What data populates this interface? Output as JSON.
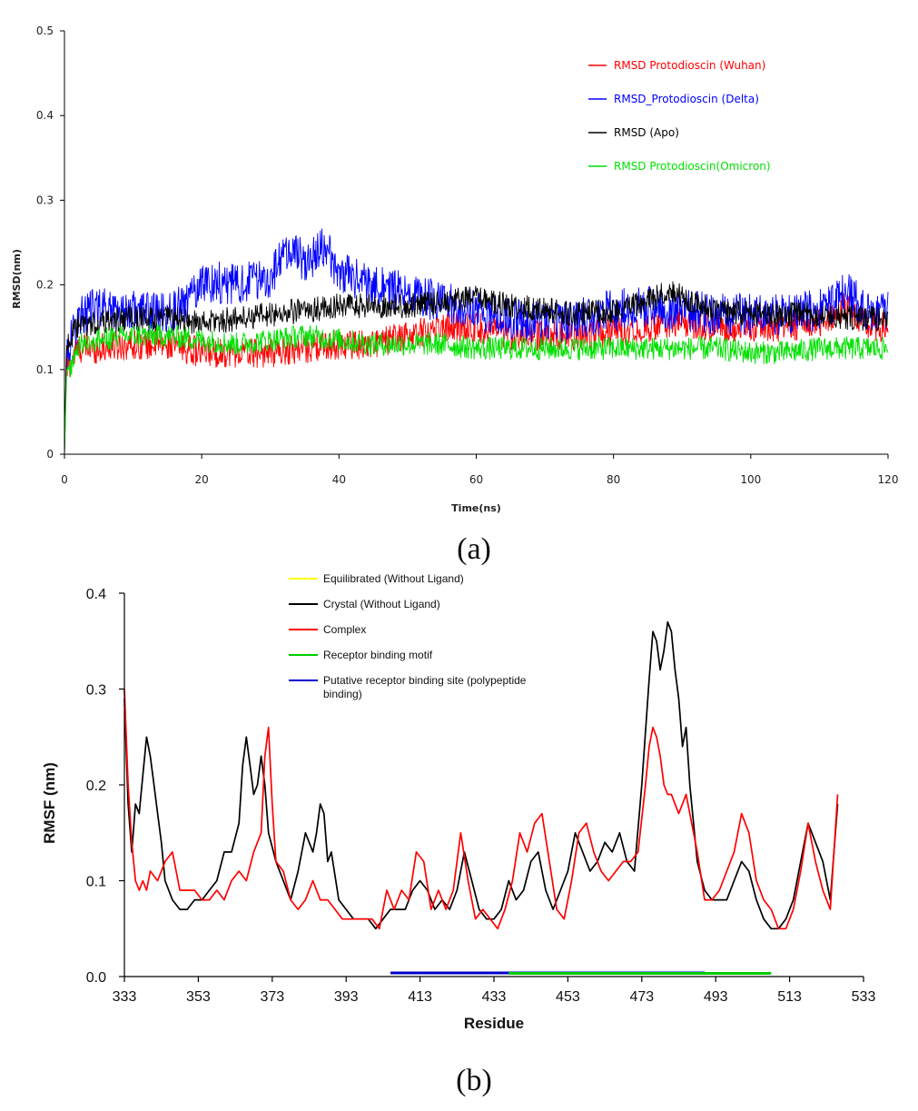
{
  "chart_data": [
    {
      "type": "line",
      "panel_label": "(a)",
      "title": "",
      "xlabel": "Time(ns)",
      "ylabel": "RMSD(nm)",
      "xlim": [
        0,
        120
      ],
      "ylim": [
        0,
        0.5
      ],
      "x_ticks": [
        "0",
        "20",
        "40",
        "60",
        "80",
        "100",
        "120"
      ],
      "y_ticks": [
        "0",
        "0.1",
        "0.2",
        "0.3",
        "0.4",
        "0.5"
      ],
      "legend_placement": "top-right",
      "series": [
        {
          "name": "RMSD Protodioscin (Wuhan)",
          "color": "#ff0000",
          "noise": 0.018,
          "x": [
            0,
            0.3,
            2,
            5,
            10,
            15,
            20,
            25,
            30,
            35,
            40,
            45,
            50,
            55,
            60,
            65,
            70,
            75,
            80,
            85,
            90,
            95,
            100,
            105,
            110,
            114,
            117,
            120
          ],
          "values": [
            0.0,
            0.1,
            0.125,
            0.125,
            0.13,
            0.13,
            0.12,
            0.12,
            0.12,
            0.125,
            0.13,
            0.13,
            0.14,
            0.15,
            0.15,
            0.14,
            0.14,
            0.14,
            0.145,
            0.15,
            0.155,
            0.15,
            0.15,
            0.15,
            0.155,
            0.175,
            0.15,
            0.15
          ]
        },
        {
          "name": "RMSD_Protodioscin (Delta)",
          "color": "#0000ff",
          "noise": 0.025,
          "x": [
            0,
            0.3,
            2,
            5,
            10,
            15,
            18,
            20,
            25,
            30,
            33,
            35,
            38,
            40,
            45,
            50,
            55,
            60,
            65,
            70,
            75,
            80,
            85,
            90,
            95,
            100,
            105,
            110,
            114,
            117,
            120
          ],
          "values": [
            0.0,
            0.12,
            0.16,
            0.175,
            0.17,
            0.165,
            0.18,
            0.205,
            0.2,
            0.21,
            0.245,
            0.225,
            0.245,
            0.215,
            0.2,
            0.19,
            0.18,
            0.17,
            0.16,
            0.155,
            0.16,
            0.17,
            0.175,
            0.17,
            0.165,
            0.165,
            0.165,
            0.17,
            0.19,
            0.17,
            0.17
          ]
        },
        {
          "name": "RMSD (Apo)",
          "color": "#000000",
          "noise": 0.015,
          "x": [
            0,
            0.3,
            2,
            5,
            10,
            15,
            20,
            25,
            30,
            35,
            40,
            45,
            50,
            55,
            60,
            65,
            70,
            75,
            80,
            85,
            88,
            90,
            95,
            100,
            105,
            110,
            115,
            120
          ],
          "values": [
            0.0,
            0.13,
            0.15,
            0.155,
            0.16,
            0.16,
            0.155,
            0.16,
            0.165,
            0.17,
            0.175,
            0.175,
            0.175,
            0.18,
            0.185,
            0.175,
            0.17,
            0.165,
            0.17,
            0.18,
            0.195,
            0.185,
            0.17,
            0.165,
            0.165,
            0.165,
            0.16,
            0.16
          ]
        },
        {
          "name": "RMSD Protodioscin(Omicron)",
          "color": "#00e000",
          "noise": 0.014,
          "x": [
            0,
            0.3,
            2,
            5,
            10,
            15,
            20,
            25,
            30,
            35,
            40,
            45,
            50,
            55,
            60,
            65,
            70,
            75,
            80,
            85,
            90,
            95,
            100,
            105,
            110,
            115,
            120
          ],
          "values": [
            0.0,
            0.09,
            0.13,
            0.135,
            0.14,
            0.14,
            0.135,
            0.13,
            0.135,
            0.14,
            0.135,
            0.13,
            0.13,
            0.13,
            0.125,
            0.125,
            0.125,
            0.125,
            0.125,
            0.125,
            0.125,
            0.125,
            0.12,
            0.12,
            0.125,
            0.125,
            0.125
          ]
        }
      ]
    },
    {
      "type": "line",
      "panel_label": "(b)",
      "title": "",
      "xlabel": "Residue",
      "ylabel": "RMSF (nm)",
      "xlim": [
        333,
        533
      ],
      "ylim": [
        0,
        0.4
      ],
      "x_ticks": [
        "333",
        "353",
        "373",
        "393",
        "413",
        "433",
        "453",
        "473",
        "493",
        "513",
        "533"
      ],
      "y_ticks": [
        "0.0",
        "0.1",
        "0.2",
        "0.3",
        "0.4"
      ],
      "legend_placement": "top-left",
      "legend": [
        {
          "name": "Equilibrated (Without Ligand)",
          "color": "#ffff00"
        },
        {
          "name": "Crystal (Without Ligand)",
          "color": "#000000"
        },
        {
          "name": "Complex",
          "color": "#ff0000"
        },
        {
          "name": "Receptor binding motif",
          "color": "#00cc00"
        },
        {
          "name": "Putative receptor binding site (polypeptide binding)",
          "color": "#0000cc"
        }
      ],
      "series": [
        {
          "name": "Crystal (Without Ligand)",
          "color": "#000000",
          "x": [
            333,
            334,
            335,
            336,
            337,
            338,
            339,
            340,
            341,
            342,
            343,
            344,
            346,
            348,
            350,
            352,
            354,
            356,
            358,
            360,
            362,
            364,
            365,
            366,
            367,
            368,
            369,
            370,
            371,
            372,
            374,
            376,
            378,
            380,
            382,
            383,
            384,
            385,
            386,
            387,
            388,
            389,
            391,
            393,
            395,
            397,
            399,
            401,
            403,
            405,
            407,
            409,
            411,
            413,
            415,
            417,
            419,
            421,
            423,
            425,
            427,
            429,
            431,
            433,
            435,
            437,
            439,
            441,
            443,
            445,
            447,
            449,
            451,
            453,
            455,
            457,
            459,
            461,
            463,
            465,
            467,
            469,
            471,
            473,
            475,
            476,
            477,
            478,
            479,
            480,
            481,
            482,
            483,
            484,
            485,
            486,
            488,
            490,
            492,
            494,
            496,
            498,
            500,
            502,
            504,
            506,
            508,
            510,
            512,
            514,
            516,
            518,
            520,
            522,
            524,
            526
          ],
          "values": [
            0.29,
            0.18,
            0.13,
            0.18,
            0.17,
            0.21,
            0.25,
            0.23,
            0.2,
            0.17,
            0.14,
            0.1,
            0.08,
            0.07,
            0.07,
            0.08,
            0.08,
            0.09,
            0.1,
            0.13,
            0.13,
            0.16,
            0.22,
            0.25,
            0.22,
            0.19,
            0.2,
            0.23,
            0.2,
            0.15,
            0.12,
            0.1,
            0.08,
            0.11,
            0.15,
            0.14,
            0.13,
            0.15,
            0.18,
            0.17,
            0.12,
            0.13,
            0.08,
            0.07,
            0.06,
            0.06,
            0.06,
            0.05,
            0.06,
            0.07,
            0.07,
            0.07,
            0.09,
            0.1,
            0.09,
            0.07,
            0.08,
            0.07,
            0.09,
            0.13,
            0.1,
            0.07,
            0.06,
            0.06,
            0.07,
            0.1,
            0.08,
            0.09,
            0.12,
            0.13,
            0.09,
            0.07,
            0.09,
            0.11,
            0.15,
            0.13,
            0.11,
            0.12,
            0.14,
            0.13,
            0.15,
            0.12,
            0.11,
            0.2,
            0.31,
            0.36,
            0.35,
            0.32,
            0.34,
            0.37,
            0.36,
            0.32,
            0.29,
            0.24,
            0.26,
            0.2,
            0.12,
            0.09,
            0.08,
            0.08,
            0.08,
            0.1,
            0.12,
            0.11,
            0.08,
            0.06,
            0.05,
            0.05,
            0.06,
            0.08,
            0.12,
            0.16,
            0.14,
            0.12,
            0.08,
            0.18
          ]
        },
        {
          "name": "Complex",
          "color": "#ff0000",
          "x": [
            333,
            334,
            335,
            336,
            337,
            338,
            339,
            340,
            342,
            344,
            346,
            348,
            350,
            352,
            354,
            356,
            358,
            360,
            362,
            364,
            366,
            368,
            370,
            371,
            372,
            373,
            374,
            376,
            378,
            380,
            382,
            384,
            386,
            388,
            390,
            392,
            394,
            396,
            398,
            400,
            402,
            404,
            406,
            408,
            410,
            412,
            414,
            416,
            418,
            420,
            422,
            424,
            426,
            428,
            430,
            432,
            434,
            436,
            438,
            440,
            442,
            444,
            446,
            448,
            450,
            452,
            454,
            456,
            458,
            460,
            462,
            464,
            466,
            468,
            470,
            472,
            474,
            475,
            476,
            477,
            478,
            479,
            480,
            481,
            482,
            483,
            484,
            485,
            486,
            488,
            490,
            492,
            494,
            496,
            498,
            500,
            502,
            504,
            506,
            508,
            510,
            512,
            514,
            516,
            518,
            520,
            522,
            524,
            526
          ],
          "values": [
            0.3,
            0.2,
            0.14,
            0.1,
            0.09,
            0.1,
            0.09,
            0.11,
            0.1,
            0.12,
            0.13,
            0.09,
            0.09,
            0.09,
            0.08,
            0.08,
            0.09,
            0.08,
            0.1,
            0.11,
            0.1,
            0.13,
            0.15,
            0.23,
            0.26,
            0.18,
            0.12,
            0.11,
            0.08,
            0.07,
            0.08,
            0.1,
            0.08,
            0.08,
            0.07,
            0.06,
            0.06,
            0.06,
            0.06,
            0.06,
            0.05,
            0.09,
            0.07,
            0.09,
            0.08,
            0.13,
            0.12,
            0.07,
            0.09,
            0.07,
            0.09,
            0.15,
            0.1,
            0.06,
            0.07,
            0.06,
            0.05,
            0.07,
            0.1,
            0.15,
            0.13,
            0.16,
            0.17,
            0.12,
            0.07,
            0.06,
            0.1,
            0.15,
            0.16,
            0.13,
            0.11,
            0.1,
            0.11,
            0.12,
            0.12,
            0.13,
            0.2,
            0.24,
            0.26,
            0.25,
            0.23,
            0.2,
            0.19,
            0.19,
            0.18,
            0.17,
            0.18,
            0.19,
            0.17,
            0.13,
            0.08,
            0.08,
            0.09,
            0.11,
            0.13,
            0.17,
            0.15,
            0.1,
            0.08,
            0.07,
            0.05,
            0.05,
            0.07,
            0.11,
            0.16,
            0.12,
            0.09,
            0.07,
            0.19
          ]
        }
      ],
      "bars": [
        {
          "name": "Putative receptor binding site (polypeptide binding)",
          "color": "#0000cc",
          "from": 405,
          "to": 490
        },
        {
          "name": "Receptor binding motif",
          "color": "#00cc00",
          "from": 437,
          "to": 508
        }
      ]
    }
  ]
}
